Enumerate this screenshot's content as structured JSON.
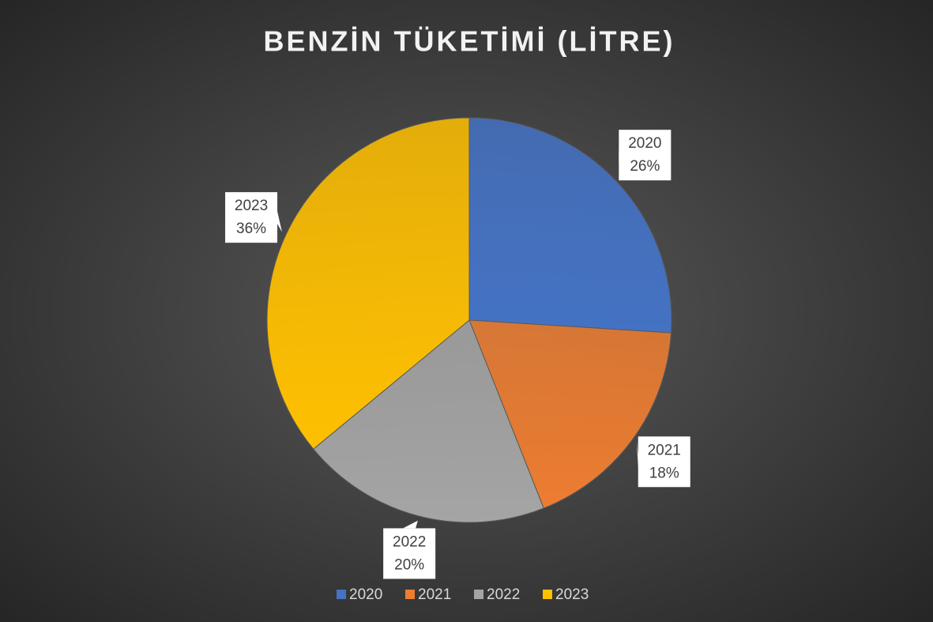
{
  "chart_data": {
    "type": "pie",
    "title": "BENZİN TÜKETİMİ (LİTRE)",
    "categories": [
      "2020",
      "2021",
      "2022",
      "2023"
    ],
    "values": [
      26,
      18,
      20,
      36
    ],
    "value_labels": [
      "26%",
      "18%",
      "20%",
      "36%"
    ],
    "colors": [
      "#4472c4",
      "#ed7d31",
      "#a5a5a5",
      "#ffc000"
    ],
    "legend": "bottom"
  }
}
